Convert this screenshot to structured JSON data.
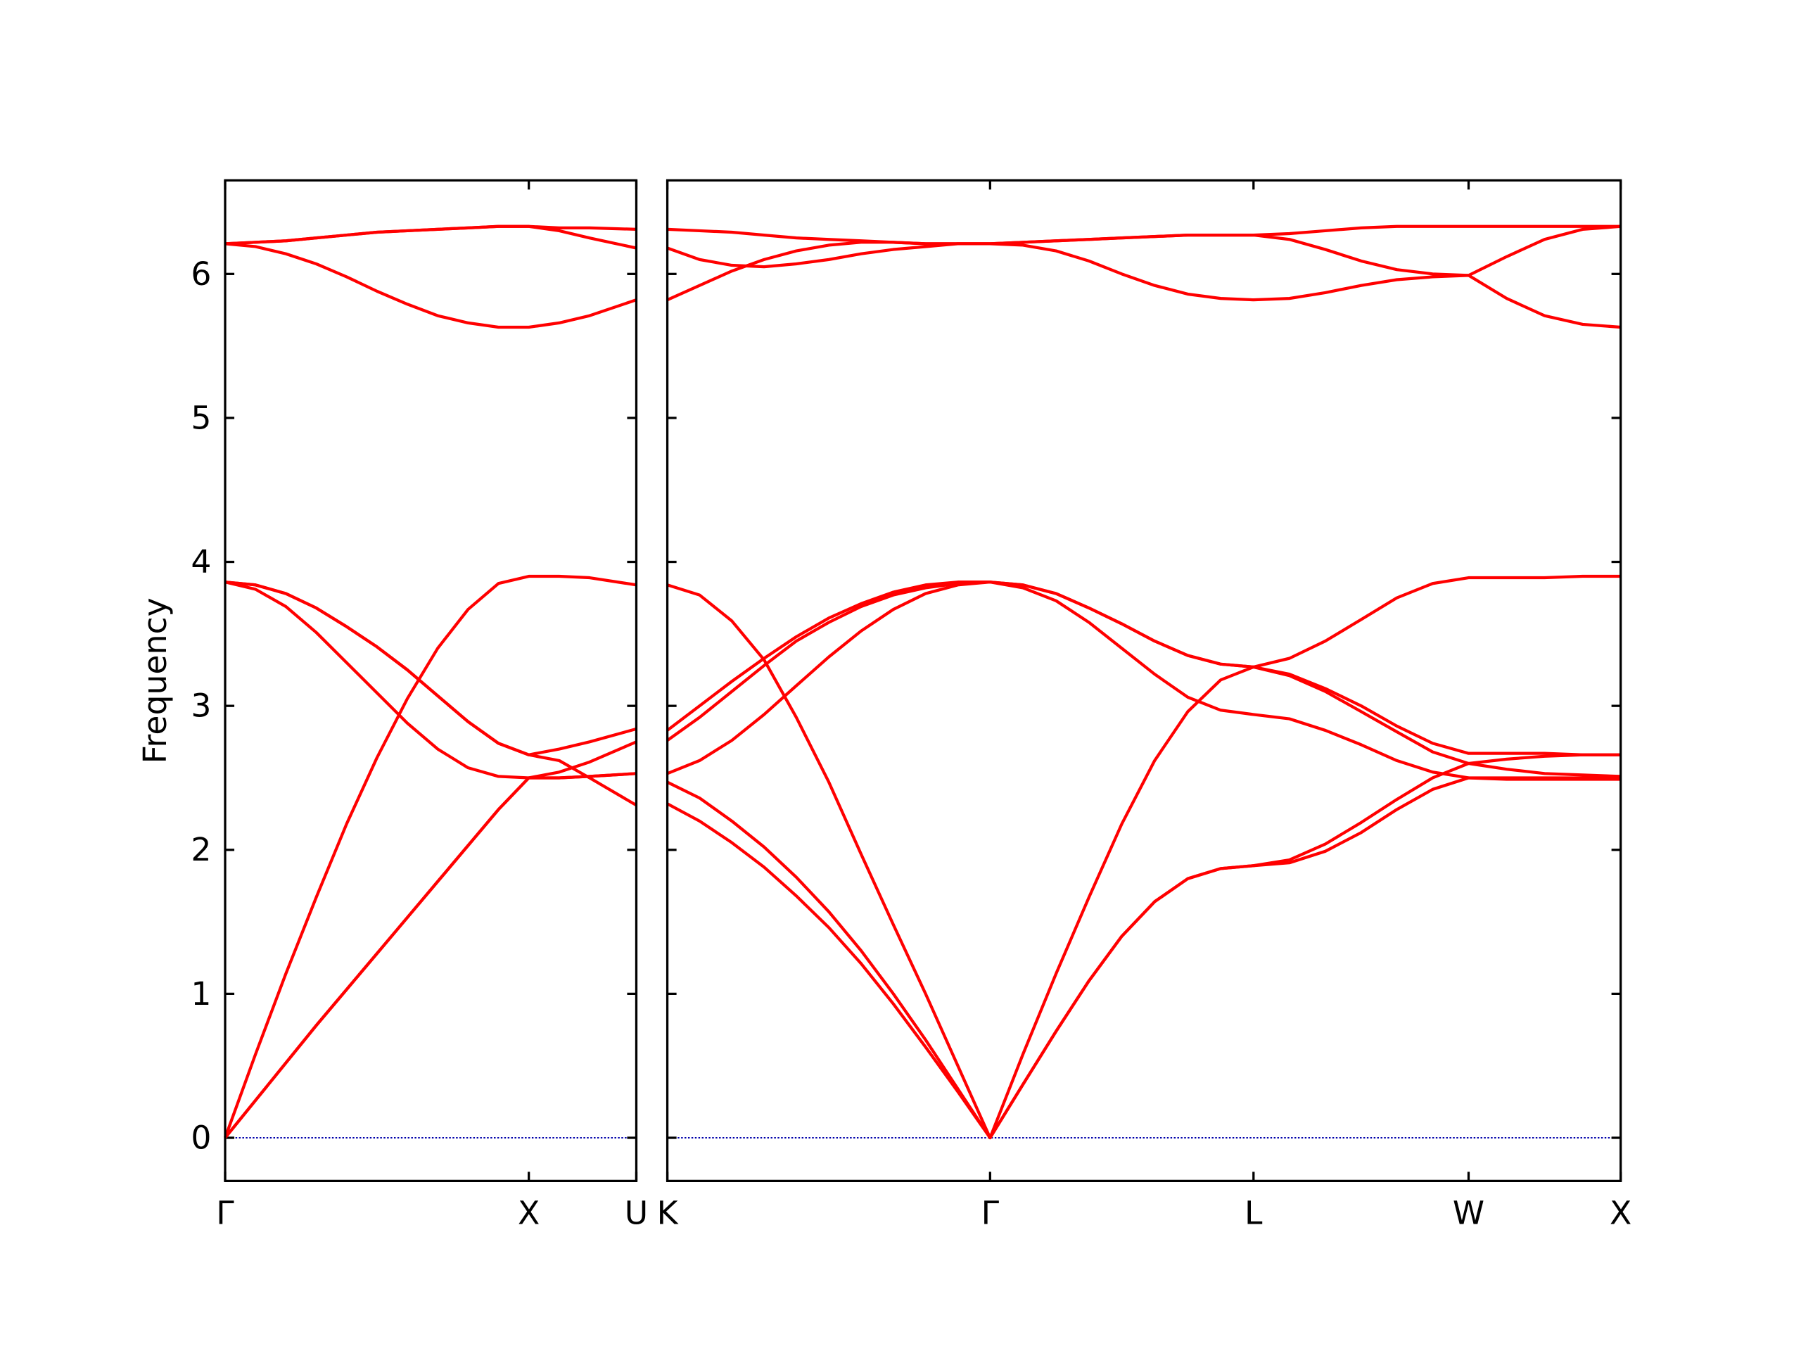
{
  "chart_data": [
    {
      "type": "line",
      "ylabel": "Frequency",
      "show_ytick_labels": true,
      "xlim": [
        0,
        1.354
      ],
      "ylim": [
        -0.3,
        6.65
      ],
      "xticks": [
        {
          "value": 0,
          "label": "Γ"
        },
        {
          "value": 1,
          "label": "X"
        },
        {
          "value": 1.354,
          "label": "U"
        }
      ],
      "yticks": [
        0,
        1,
        2,
        3,
        4,
        5,
        6
      ],
      "zero_line_color": "#0000aa",
      "x": [
        0,
        0.1,
        0.2,
        0.3,
        0.4,
        0.5,
        0.6,
        0.7,
        0.8,
        0.9,
        1.0,
        1.1,
        1.2,
        1.354
      ],
      "series": [
        {
          "color": "#ff0000",
          "values": [
            0,
            0.26,
            0.52,
            0.78,
            1.03,
            1.28,
            1.53,
            1.78,
            2.03,
            2.28,
            2.5,
            2.5,
            2.51,
            2.53
          ]
        },
        {
          "color": "#ff0000",
          "values": [
            0,
            0.26,
            0.52,
            0.78,
            1.03,
            1.28,
            1.53,
            1.78,
            2.03,
            2.28,
            2.5,
            2.54,
            2.61,
            2.75
          ]
        },
        {
          "color": "#ff0000",
          "values": [
            0,
            0.58,
            1.14,
            1.67,
            2.18,
            2.64,
            3.05,
            3.4,
            3.67,
            3.85,
            3.9,
            3.9,
            3.89,
            3.84
          ]
        },
        {
          "color": "#ff0000",
          "values": [
            3.86,
            3.84,
            3.78,
            3.68,
            3.55,
            3.41,
            3.25,
            3.07,
            2.89,
            2.74,
            2.66,
            2.7,
            2.75,
            2.84
          ]
        },
        {
          "color": "#ff0000",
          "values": [
            3.86,
            3.84,
            3.78,
            3.68,
            3.55,
            3.41,
            3.25,
            3.07,
            2.89,
            2.74,
            2.66,
            2.62,
            2.5,
            2.31
          ]
        },
        {
          "color": "#ff0000",
          "values": [
            3.86,
            3.81,
            3.69,
            3.51,
            3.3,
            3.09,
            2.88,
            2.7,
            2.57,
            2.51,
            2.5,
            2.5,
            2.51,
            2.53
          ]
        },
        {
          "color": "#ff0000",
          "values": [
            6.21,
            6.22,
            6.23,
            6.25,
            6.27,
            6.29,
            6.3,
            6.31,
            6.32,
            6.33,
            6.33,
            6.32,
            6.32,
            6.31
          ]
        },
        {
          "color": "#ff0000",
          "values": [
            6.21,
            6.22,
            6.23,
            6.25,
            6.27,
            6.29,
            6.3,
            6.31,
            6.32,
            6.33,
            6.33,
            6.3,
            6.25,
            6.18
          ]
        },
        {
          "color": "#ff0000",
          "values": [
            6.21,
            6.19,
            6.14,
            6.07,
            5.98,
            5.88,
            5.79,
            5.71,
            5.66,
            5.63,
            5.63,
            5.66,
            5.71,
            5.82
          ]
        }
      ]
    },
    {
      "type": "line",
      "show_ytick_labels": false,
      "xlim": [
        1.354,
        4.488
      ],
      "ylim": [
        -0.3,
        6.65
      ],
      "xticks": [
        {
          "value": 1.354,
          "label": "K"
        },
        {
          "value": 2.415,
          "label": "Γ"
        },
        {
          "value": 3.281,
          "label": "L"
        },
        {
          "value": 3.988,
          "label": "W"
        },
        {
          "value": 4.488,
          "label": "X"
        }
      ],
      "yticks": [
        0,
        1,
        2,
        3,
        4,
        5,
        6
      ],
      "zero_line_color": "#0000aa",
      "x": [
        1.354,
        1.46,
        1.566,
        1.672,
        1.778,
        1.885,
        1.991,
        2.097,
        2.203,
        2.309,
        2.415,
        2.523,
        2.632,
        2.74,
        2.848,
        2.956,
        3.065,
        3.173,
        3.281,
        3.399,
        3.517,
        3.635,
        3.752,
        3.87,
        3.988,
        4.113,
        4.238,
        4.363,
        4.488
      ],
      "series": [
        {
          "color": "#ff0000",
          "values": [
            2.32,
            2.2,
            2.05,
            1.88,
            1.68,
            1.46,
            1.21,
            0.93,
            0.63,
            0.32,
            0,
            0.37,
            0.74,
            1.09,
            1.4,
            1.64,
            1.8,
            1.87,
            1.89,
            1.91,
            1.99,
            2.12,
            2.28,
            2.42,
            2.5,
            2.5,
            2.5,
            2.5,
            2.5
          ]
        },
        {
          "color": "#ff0000",
          "values": [
            2.47,
            2.36,
            2.2,
            2.02,
            1.81,
            1.57,
            1.3,
            1.0,
            0.68,
            0.34,
            0,
            0.37,
            0.74,
            1.09,
            1.4,
            1.64,
            1.8,
            1.87,
            1.89,
            1.93,
            2.04,
            2.19,
            2.35,
            2.5,
            2.6,
            2.63,
            2.65,
            2.66,
            2.66
          ]
        },
        {
          "color": "#ff0000",
          "values": [
            3.84,
            3.77,
            3.59,
            3.32,
            2.92,
            2.47,
            1.97,
            1.48,
            1.0,
            0.5,
            0,
            0.58,
            1.14,
            1.67,
            2.18,
            2.62,
            2.96,
            3.18,
            3.27,
            3.33,
            3.45,
            3.6,
            3.75,
            3.85,
            3.89,
            3.89,
            3.89,
            3.9,
            3.9
          ]
        },
        {
          "color": "#ff0000",
          "values": [
            2.83,
            3.0,
            3.17,
            3.33,
            3.48,
            3.61,
            3.71,
            3.79,
            3.84,
            3.86,
            3.86,
            3.84,
            3.78,
            3.68,
            3.57,
            3.45,
            3.35,
            3.29,
            3.27,
            3.22,
            3.12,
            3.0,
            2.86,
            2.74,
            2.67,
            2.67,
            2.67,
            2.66,
            2.66
          ]
        },
        {
          "color": "#ff0000",
          "values": [
            2.76,
            2.92,
            3.1,
            3.28,
            3.45,
            3.58,
            3.69,
            3.77,
            3.82,
            3.85,
            3.86,
            3.84,
            3.78,
            3.68,
            3.57,
            3.45,
            3.35,
            3.29,
            3.27,
            3.21,
            3.1,
            2.96,
            2.82,
            2.68,
            2.6,
            2.56,
            2.53,
            2.52,
            2.51
          ]
        },
        {
          "color": "#ff0000",
          "values": [
            2.53,
            2.62,
            2.76,
            2.94,
            3.14,
            3.34,
            3.52,
            3.67,
            3.78,
            3.84,
            3.86,
            3.82,
            3.73,
            3.58,
            3.4,
            3.22,
            3.06,
            2.97,
            2.94,
            2.91,
            2.83,
            2.73,
            2.62,
            2.54,
            2.5,
            2.49,
            2.49,
            2.49,
            2.49
          ]
        },
        {
          "color": "#ff0000",
          "values": [
            6.31,
            6.3,
            6.29,
            6.27,
            6.25,
            6.24,
            6.23,
            6.22,
            6.21,
            6.21,
            6.21,
            6.22,
            6.23,
            6.24,
            6.25,
            6.26,
            6.27,
            6.27,
            6.27,
            6.28,
            6.3,
            6.32,
            6.33,
            6.33,
            6.33,
            6.33,
            6.33,
            6.33,
            6.33
          ]
        },
        {
          "color": "#ff0000",
          "values": [
            6.18,
            6.1,
            6.06,
            6.05,
            6.07,
            6.1,
            6.14,
            6.17,
            6.19,
            6.21,
            6.21,
            6.22,
            6.23,
            6.24,
            6.25,
            6.26,
            6.27,
            6.27,
            6.27,
            6.24,
            6.17,
            6.09,
            6.03,
            6.0,
            5.99,
            6.12,
            6.24,
            6.31,
            6.33
          ]
        },
        {
          "color": "#ff0000",
          "values": [
            5.82,
            5.92,
            6.02,
            6.1,
            6.16,
            6.2,
            6.22,
            6.22,
            6.21,
            6.21,
            6.21,
            6.2,
            6.16,
            6.09,
            6.0,
            5.92,
            5.86,
            5.83,
            5.82,
            5.83,
            5.87,
            5.92,
            5.96,
            5.98,
            5.99,
            5.83,
            5.71,
            5.65,
            5.63
          ]
        }
      ]
    }
  ]
}
